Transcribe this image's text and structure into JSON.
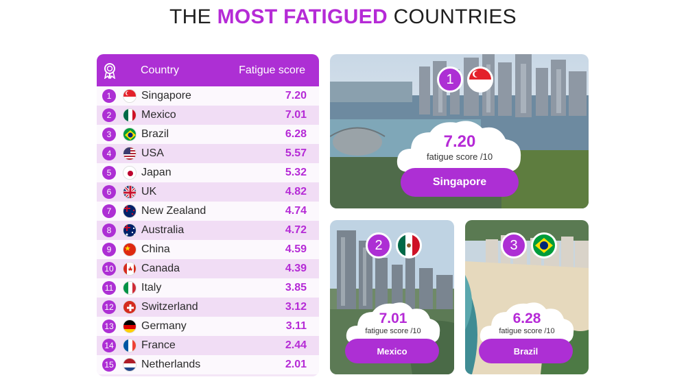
{
  "title": {
    "part1": "THE ",
    "accent": "MOST FATIGUED",
    "part2": " COUNTRIES"
  },
  "table": {
    "header_icon": "award-ribbon-icon",
    "col_country": "Country",
    "col_score": "Fatigue score",
    "rows": [
      {
        "rank": "1",
        "country": "Singapore",
        "score": "7.20",
        "flag": "singapore-flag-icon"
      },
      {
        "rank": "2",
        "country": "Mexico",
        "score": "7.01",
        "flag": "mexico-flag-icon"
      },
      {
        "rank": "3",
        "country": "Brazil",
        "score": "6.28",
        "flag": "brazil-flag-icon"
      },
      {
        "rank": "4",
        "country": "USA",
        "score": "5.57",
        "flag": "usa-flag-icon"
      },
      {
        "rank": "5",
        "country": "Japan",
        "score": "5.32",
        "flag": "japan-flag-icon"
      },
      {
        "rank": "6",
        "country": "UK",
        "score": "4.82",
        "flag": "uk-flag-icon"
      },
      {
        "rank": "7",
        "country": "New Zealand",
        "score": "4.74",
        "flag": "new-zealand-flag-icon"
      },
      {
        "rank": "8",
        "country": "Australia",
        "score": "4.72",
        "flag": "australia-flag-icon"
      },
      {
        "rank": "9",
        "country": "China",
        "score": "4.59",
        "flag": "china-flag-icon"
      },
      {
        "rank": "10",
        "country": "Canada",
        "score": "4.39",
        "flag": "canada-flag-icon"
      },
      {
        "rank": "11",
        "country": "Italy",
        "score": "3.85",
        "flag": "italy-flag-icon"
      },
      {
        "rank": "12",
        "country": "Switzerland",
        "score": "3.12",
        "flag": "switzerland-flag-icon"
      },
      {
        "rank": "13",
        "country": "Germany",
        "score": "3.11",
        "flag": "germany-flag-icon"
      },
      {
        "rank": "14",
        "country": "France",
        "score": "2.44",
        "flag": "france-flag-icon"
      },
      {
        "rank": "15",
        "country": "Netherlands",
        "score": "2.01",
        "flag": "netherlands-flag-icon"
      }
    ]
  },
  "cards": [
    {
      "rank": "1",
      "value": "7.20",
      "unit": "fatigue score /10",
      "country": "Singapore",
      "flag": "singapore-flag-icon",
      "photo": "singapore-skyline-photo"
    },
    {
      "rank": "2",
      "value": "7.01",
      "unit": "fatigue score /10",
      "country": "Mexico",
      "flag": "mexico-flag-icon",
      "photo": "mexico-city-photo"
    },
    {
      "rank": "3",
      "value": "6.28",
      "unit": "fatigue score /10",
      "country": "Brazil",
      "flag": "brazil-flag-icon",
      "photo": "rio-beach-photo"
    }
  ],
  "colors": {
    "accent": "#b52ad6",
    "header_purple": "#ad2fd4",
    "row_light": "#fcf8fd",
    "row_dark": "#f1ddf5"
  }
}
